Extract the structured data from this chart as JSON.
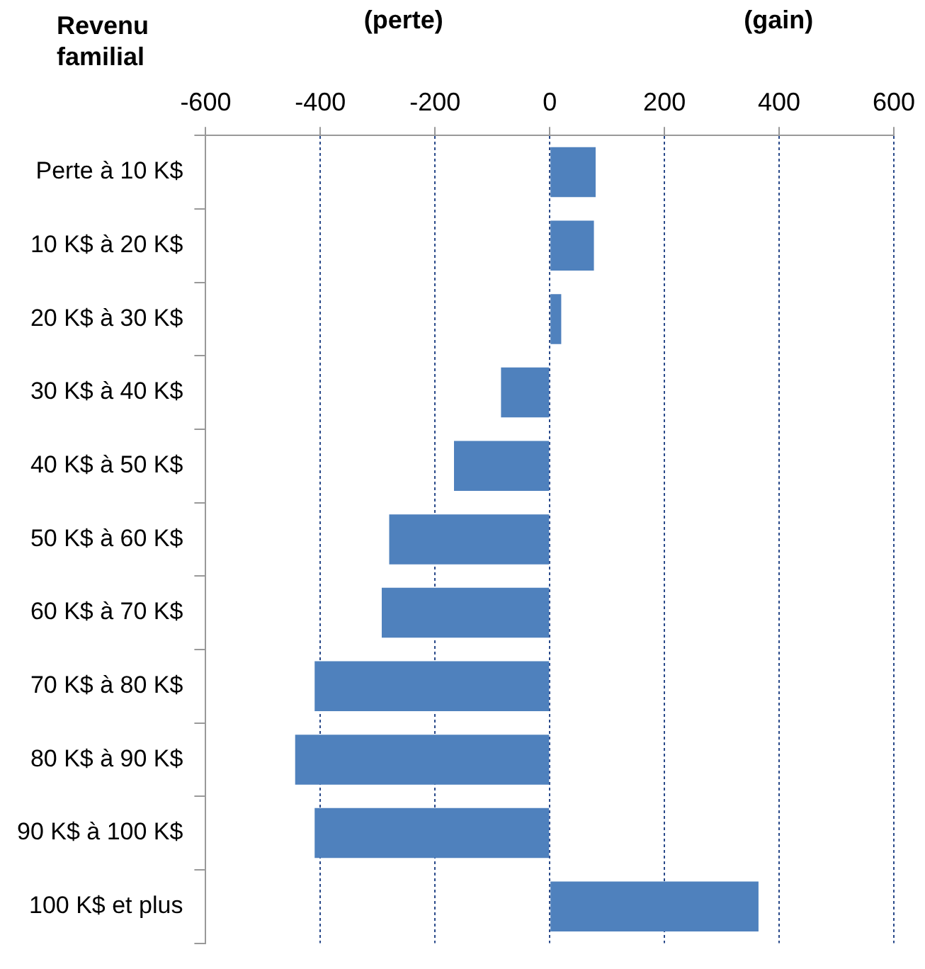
{
  "chart_data": {
    "type": "bar",
    "orientation": "horizontal",
    "ylabel": "Revenu familial",
    "annotations": [
      "(perte)",
      "(gain)"
    ],
    "categories": [
      "Perte à 10 K$",
      "10 K$ à 20 K$",
      "20 K$ à 30 K$",
      "30 K$ à 40 K$",
      "40 K$ à 50 K$",
      "50 K$ à 60 K$",
      "60 K$ à 70 K$",
      "70 K$ à 80 K$",
      "80 K$ à 90 K$",
      "90 K$ à 100 K$",
      "100 K$ et plus"
    ],
    "values": [
      80,
      77,
      20,
      -85,
      -167,
      -280,
      -293,
      -410,
      -444,
      -410,
      364
    ],
    "color": "#4f81bd",
    "xlim": [
      -600,
      600
    ],
    "xticks": [
      -600,
      -400,
      -200,
      0,
      200,
      400,
      600
    ],
    "grid": "x",
    "legend": false
  }
}
